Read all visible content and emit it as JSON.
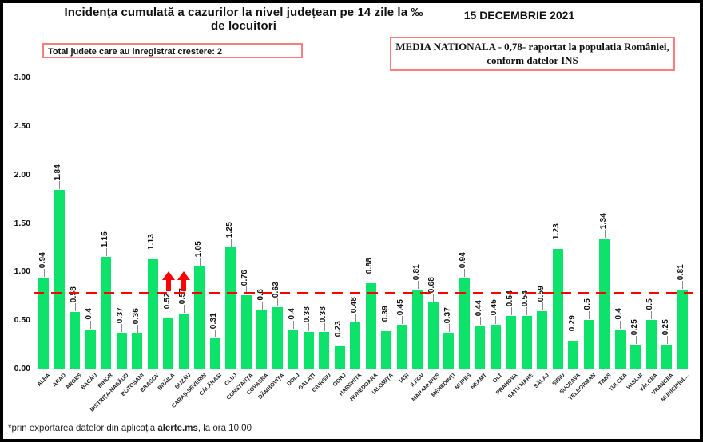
{
  "header": {
    "title": "Incidența cumulată a cazurilor la nivel județean pe 14 zile la ‰ de locuitori",
    "date": "15 DECEMBRIE 2021",
    "growth_box_label": "Total judete care au inregistrat crestere: 2",
    "national_average_box": {
      "line1": "MEDIA NATIONALA - 0,78-  raportat la populatia  României,",
      "line2": "conform datelor INS"
    }
  },
  "footer": {
    "note_prefix": "*prin exportarea datelor din aplicația ",
    "note_bold": "alerte.ms",
    "note_suffix": ", la ora 10.00"
  },
  "chart_data": {
    "type": "bar",
    "title": "Incidența cumulată a cazurilor la nivel județean pe 14 zile la ‰ de locuitori",
    "xlabel": "",
    "ylabel": "",
    "ylim": [
      0,
      3.0
    ],
    "yticks": [
      0,
      0.5,
      1.0,
      1.5,
      2.0,
      2.5,
      3.0
    ],
    "grid": false,
    "legend": false,
    "bar_color": "#0de26b",
    "reference_line": {
      "value": 0.78,
      "label": "MEDIA NATIONALA 0,78",
      "color": "#fe0000",
      "style": "dashed"
    },
    "increase_arrows": [
      "BRĂILA",
      "BUZĂU"
    ],
    "arrow_color": "#fe0000",
    "categories": [
      "ALBA",
      "ARAD",
      "ARGEȘ",
      "BACĂU",
      "BIHOR",
      "BISTRIȚA-NĂSĂUD",
      "BOTOȘANI",
      "BRAȘOV",
      "BRĂILA",
      "BUZĂU",
      "CARAȘ-SEVERIN",
      "CĂLĂRAȘI",
      "CLUJ",
      "CONSTANȚA",
      "COVASNA",
      "DÂMBOVIȚA",
      "DOLJ",
      "GALAȚI",
      "GIURGIU",
      "GORJ",
      "HARGHITA",
      "HUNEDOARA",
      "IALOMIȚA",
      "IAȘI",
      "ILFOV",
      "MARAMUREȘ",
      "MEHEDINȚI",
      "MUREȘ",
      "NEAMȚ",
      "OLT",
      "PRAHOVA",
      "SATU MARE",
      "SĂLAJ",
      "SIBIU",
      "SUCEAVA",
      "TELEORMAN",
      "TIMIȘ",
      "TULCEA",
      "VASLUI",
      "VÂLCEA",
      "VRANCEA",
      "MUNICIPIUL..."
    ],
    "values": [
      0.94,
      1.84,
      0.58,
      0.4,
      1.15,
      0.37,
      0.36,
      1.13,
      0.52,
      0.57,
      1.05,
      0.31,
      1.25,
      0.76,
      0.6,
      0.63,
      0.4,
      0.38,
      0.38,
      0.23,
      0.48,
      0.88,
      0.39,
      0.45,
      0.81,
      0.68,
      0.37,
      0.94,
      0.44,
      0.45,
      0.54,
      0.54,
      0.59,
      1.23,
      0.29,
      0.5,
      1.34,
      0.4,
      0.25,
      0.5,
      0.25,
      0.81
    ]
  }
}
